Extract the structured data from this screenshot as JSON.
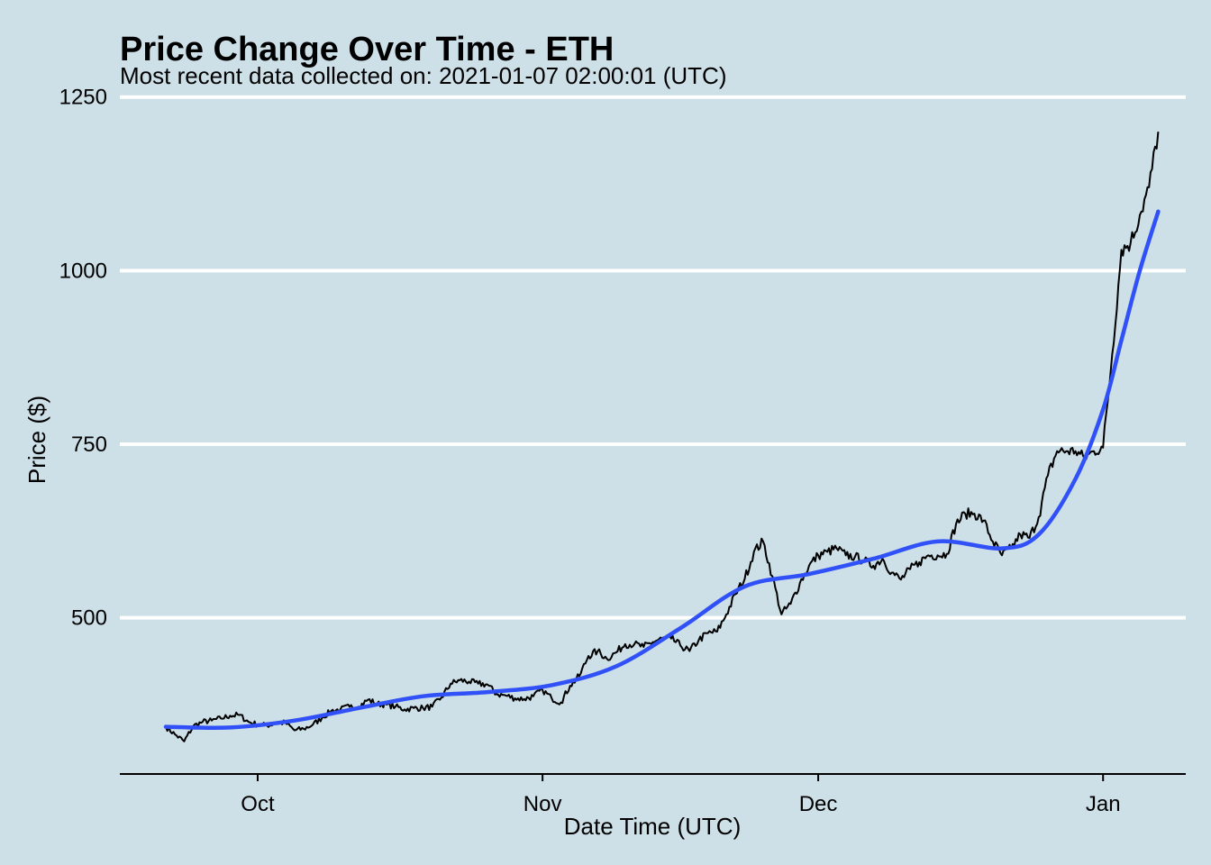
{
  "chart_data": {
    "type": "line",
    "title": "Price Change Over Time - ETH",
    "subtitle": "Most recent data collected on: 2021-01-07 02:00:01 (UTC)",
    "xlabel": "Date Time (UTC)",
    "ylabel": "Price ($)",
    "x_range": [
      "2020-09-16",
      "2021-01-10"
    ],
    "ylim": [
      275,
      1260
    ],
    "x_ticks": [
      {
        "date": "2020-10-01",
        "label": "Oct"
      },
      {
        "date": "2020-11-01",
        "label": "Nov"
      },
      {
        "date": "2020-12-01",
        "label": "Dec"
      },
      {
        "date": "2021-01-01",
        "label": "Jan"
      }
    ],
    "y_ticks": [
      500,
      750,
      1000,
      1250
    ],
    "grid": "horizontal major gridlines only",
    "legend": "none",
    "colors": {
      "background": "#cddfe7",
      "grid": "#ffffff",
      "price_line": "#000000",
      "smooth_line": "#3050f8",
      "axis": "#000000"
    },
    "series": [
      {
        "role": "price",
        "x": [
          "2020-09-21",
          "2020-09-22",
          "2020-09-23",
          "2020-09-24",
          "2020-09-25",
          "2020-09-26",
          "2020-09-27",
          "2020-09-28",
          "2020-09-29",
          "2020-09-30",
          "2020-10-01",
          "2020-10-02",
          "2020-10-03",
          "2020-10-04",
          "2020-10-05",
          "2020-10-06",
          "2020-10-07",
          "2020-10-08",
          "2020-10-09",
          "2020-10-10",
          "2020-10-11",
          "2020-10-12",
          "2020-10-13",
          "2020-10-14",
          "2020-10-15",
          "2020-10-16",
          "2020-10-17",
          "2020-10-18",
          "2020-10-19",
          "2020-10-20",
          "2020-10-21",
          "2020-10-22",
          "2020-10-23",
          "2020-10-24",
          "2020-10-25",
          "2020-10-26",
          "2020-10-27",
          "2020-10-28",
          "2020-10-29",
          "2020-10-30",
          "2020-10-31",
          "2020-11-01",
          "2020-11-02",
          "2020-11-03",
          "2020-11-04",
          "2020-11-05",
          "2020-11-06",
          "2020-11-07",
          "2020-11-08",
          "2020-11-09",
          "2020-11-10",
          "2020-11-11",
          "2020-11-12",
          "2020-11-13",
          "2020-11-14",
          "2020-11-15",
          "2020-11-16",
          "2020-11-17",
          "2020-11-18",
          "2020-11-19",
          "2020-11-20",
          "2020-11-21",
          "2020-11-22",
          "2020-11-23",
          "2020-11-24",
          "2020-11-25",
          "2020-11-26",
          "2020-11-27",
          "2020-11-28",
          "2020-11-29",
          "2020-11-30",
          "2020-12-01",
          "2020-12-02",
          "2020-12-03",
          "2020-12-04",
          "2020-12-05",
          "2020-12-06",
          "2020-12-07",
          "2020-12-08",
          "2020-12-09",
          "2020-12-10",
          "2020-12-11",
          "2020-12-12",
          "2020-12-13",
          "2020-12-14",
          "2020-12-15",
          "2020-12-16",
          "2020-12-17",
          "2020-12-18",
          "2020-12-19",
          "2020-12-20",
          "2020-12-21",
          "2020-12-22",
          "2020-12-23",
          "2020-12-24",
          "2020-12-25",
          "2020-12-26",
          "2020-12-27",
          "2020-12-28",
          "2020-12-29",
          "2020-12-30",
          "2020-12-31",
          "2021-01-01",
          "2021-01-02",
          "2021-01-03",
          "2021-01-04",
          "2021-01-05",
          "2021-01-06",
          "2021-01-07"
        ],
        "values": [
          343,
          332,
          322,
          344,
          350,
          352,
          355,
          359,
          360,
          350,
          346,
          345,
          348,
          349,
          338,
          340,
          346,
          356,
          366,
          368,
          372,
          372,
          382,
          376,
          375,
          372,
          368,
          370,
          370,
          372,
          385,
          405,
          410,
          408,
          405,
          404,
          390,
          388,
          384,
          383,
          387,
          396,
          384,
          378,
          402,
          416,
          445,
          452,
          441,
          450,
          462,
          462,
          458,
          465,
          470,
          470,
          460,
          452,
          468,
          478,
          480,
          505,
          534,
          556,
          595,
          610,
          560,
          505,
          520,
          550,
          575,
          590,
          595,
          600,
          590,
          588,
          582,
          575,
          585,
          565,
          555,
          570,
          580,
          590,
          590,
          592,
          635,
          650,
          650,
          640,
          610,
          590,
          600,
          620,
          615,
          645,
          705,
          740,
          740,
          740,
          730,
          740,
          745,
          880,
          1030,
          1040,
          1080,
          1120,
          1200
        ]
      },
      {
        "role": "smooth",
        "x": [
          "2020-09-21",
          "2020-09-28",
          "2020-10-05",
          "2020-10-12",
          "2020-10-19",
          "2020-10-26",
          "2020-11-02",
          "2020-11-09",
          "2020-11-16",
          "2020-11-23",
          "2020-11-30",
          "2020-12-07",
          "2020-12-14",
          "2020-12-21",
          "2020-12-25",
          "2020-12-29",
          "2021-01-01",
          "2021-01-03",
          "2021-01-05",
          "2021-01-07"
        ],
        "values": [
          343,
          342,
          352,
          370,
          387,
          393,
          403,
          430,
          485,
          545,
          563,
          585,
          610,
          600,
          620,
          700,
          800,
          900,
          1000,
          1085
        ]
      }
    ]
  }
}
